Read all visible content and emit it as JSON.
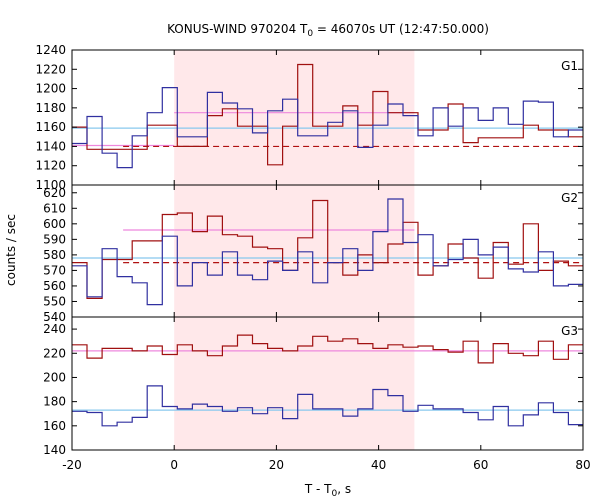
{
  "chart_data": {
    "type": "line",
    "title": "KONUS-WIND 970204 T",
    "title_sub": "0",
    "title_rest": " = 46070s UT (12:47:50.000)",
    "xlabel": "T - T",
    "xlabel_sub": "0",
    "xlabel_rest": ", s",
    "ylabel": "counts / sec",
    "xlim": [
      -20,
      80
    ],
    "x_ticks": [
      -20,
      0,
      20,
      40,
      60,
      80
    ],
    "x_tick_labels": [
      "-20",
      "0",
      "20",
      "40",
      "60",
      "80"
    ],
    "highlight_range": [
      0,
      47
    ],
    "colors": {
      "red": "#a01010",
      "blue": "#3030a0",
      "highlight": "#ffe8ea",
      "pink_level": "#ee88dd",
      "cyan_level": "#88c8ee",
      "dashed": "#b01010"
    },
    "panels": [
      {
        "label": "G1",
        "ylim": [
          1100,
          1240
        ],
        "y_ticks": [
          1100,
          1120,
          1140,
          1160,
          1180,
          1200,
          1220,
          1240
        ],
        "y_tick_labels": [
          "1100",
          "1120",
          "1140",
          "1160",
          "1180",
          "1200",
          "1220",
          "1240"
        ],
        "bin_width": 2.944,
        "bin_start": -20,
        "series": [
          {
            "color": "red",
            "values": [
              1160,
              1137,
              1137,
              1137,
              1137,
              1162,
              1162,
              1140,
              1140,
              1172,
              1179,
              1161,
              1161,
              1121,
              1161,
              1225,
              1161,
              1161,
              1182,
              1162,
              1197,
              1175,
              1175,
              1157,
              1157,
              1184,
              1144,
              1149,
              1149,
              1149,
              1162,
              1157,
              1157,
              1150,
              1150
            ]
          },
          {
            "color": "blue",
            "values": [
              1143,
              1171,
              1133,
              1118,
              1151,
              1175,
              1201,
              1150,
              1150,
              1196,
              1185,
              1179,
              1154,
              1177,
              1189,
              1151,
              1151,
              1165,
              1177,
              1139,
              1162,
              1184,
              1172,
              1151,
              1180,
              1161,
              1180,
              1167,
              1180,
              1163,
              1187,
              1186,
              1150,
              1157,
              1148
            ]
          }
        ],
        "level_lines": [
          {
            "color": "pink_level",
            "x": [
              -20,
              0
            ],
            "y": 1141
          },
          {
            "color": "pink_level",
            "x": [
              0,
              47
            ],
            "y": 1175
          },
          {
            "color": "cyan_level",
            "x": [
              -20,
              80
            ],
            "y": 1159
          },
          {
            "color": "dashed",
            "x": [
              -10,
              80
            ],
            "y": 1140,
            "dashed": true
          }
        ]
      },
      {
        "label": "G2",
        "ylim": [
          540,
          625
        ],
        "y_ticks": [
          540,
          550,
          560,
          570,
          580,
          590,
          600,
          610,
          620
        ],
        "y_tick_labels": [
          "540",
          "550",
          "560",
          "570",
          "580",
          "590",
          "600",
          "610",
          "620"
        ],
        "bin_width": 2.944,
        "bin_start": -20,
        "series": [
          {
            "color": "red",
            "values": [
              575,
              552,
              577,
              577,
              589,
              589,
              606,
              607,
              595,
              605,
              593,
              592,
              585,
              584,
              570,
              591,
              615,
              575,
              567,
              580,
              575,
              587,
              601,
              567,
              573,
              587,
              578,
              565,
              588,
              574,
              600,
              570,
              576,
              573,
              573
            ]
          },
          {
            "color": "blue",
            "values": [
              573,
              553,
              584,
              566,
              562,
              548,
              592,
              560,
              575,
              567,
              582,
              567,
              564,
              576,
              570,
              582,
              562,
              575,
              584,
              570,
              595,
              616,
              588,
              593,
              573,
              577,
              590,
              580,
              585,
              571,
              569,
              582,
              560,
              561,
              570
            ]
          }
        ],
        "level_lines": [
          {
            "color": "pink_level",
            "x": [
              -10,
              0
            ],
            "y": 596
          },
          {
            "color": "pink_level",
            "x": [
              0,
              47
            ],
            "y": 596
          },
          {
            "color": "cyan_level",
            "x": [
              -20,
              80
            ],
            "y": 578
          },
          {
            "color": "dashed",
            "x": [
              -10,
              80
            ],
            "y": 575,
            "dashed": true
          }
        ]
      },
      {
        "label": "G3",
        "ylim": [
          140,
          250
        ],
        "y_ticks": [
          140,
          160,
          180,
          200,
          220,
          240
        ],
        "y_tick_labels": [
          "140",
          "160",
          "180",
          "200",
          "220",
          "240"
        ],
        "bin_width": 2.944,
        "bin_start": -20,
        "series": [
          {
            "color": "red",
            "values": [
              227,
              216,
              224,
              224,
              222,
              226,
              219,
              227,
              222,
              218,
              226,
              235,
              228,
              224,
              222,
              226,
              234,
              230,
              232,
              228,
              224,
              227,
              225,
              226,
              223,
              221,
              230,
              212,
              228,
              220,
              218,
              230,
              215,
              227,
              222
            ]
          },
          {
            "color": "blue",
            "values": [
              172,
              171,
              160,
              163,
              167,
              193,
              176,
              174,
              178,
              176,
              172,
              175,
              170,
              175,
              166,
              186,
              174,
              174,
              168,
              174,
              190,
              185,
              172,
              177,
              174,
              174,
              171,
              165,
              176,
              160,
              169,
              179,
              171,
              161,
              170
            ]
          }
        ],
        "level_lines": [
          {
            "color": "pink_level",
            "x": [
              -20,
              80
            ],
            "y": 222
          },
          {
            "color": "cyan_level",
            "x": [
              -20,
              80
            ],
            "y": 173
          }
        ]
      }
    ]
  }
}
